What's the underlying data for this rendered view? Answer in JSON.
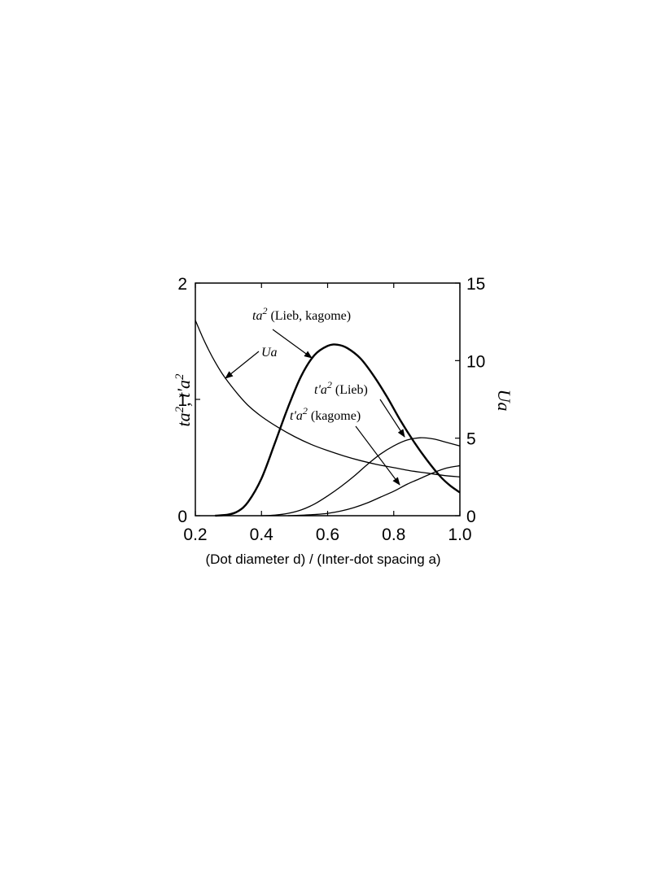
{
  "chart_data": {
    "type": "line",
    "xlabel": "(Dot diameter d) / (Inter-dot spacing a)",
    "ylabel_left": {
      "main": "ta",
      "sup1": "2",
      "sep": ", t'a",
      "sup2": "2"
    },
    "ylabel_right": "Ua",
    "xlim": [
      0.2,
      1.0
    ],
    "ylim_left": [
      0,
      2
    ],
    "ylim_right": [
      0,
      15
    ],
    "x_ticks": [
      "0.2",
      "0.4",
      "0.6",
      "0.8",
      "1.0"
    ],
    "y_left_ticks": [
      "0",
      "1",
      "2"
    ],
    "y_right_ticks": [
      "0",
      "5",
      "10",
      "15"
    ],
    "grid": false,
    "series": [
      {
        "axis": "left",
        "x": [
          0.26,
          0.3,
          0.33,
          0.36,
          0.4,
          0.44,
          0.48,
          0.52,
          0.56,
          0.6,
          0.63,
          0.66,
          0.7,
          0.74,
          0.78,
          0.82,
          0.86,
          0.9,
          0.94,
          0.97,
          1.0
        ],
        "y": [
          0.0,
          0.01,
          0.04,
          0.12,
          0.32,
          0.62,
          0.93,
          1.2,
          1.38,
          1.46,
          1.47,
          1.44,
          1.35,
          1.2,
          1.02,
          0.82,
          0.64,
          0.48,
          0.34,
          0.26,
          0.2
        ]
      },
      {
        "axis": "left",
        "x": [
          0.4,
          0.44,
          0.48,
          0.52,
          0.56,
          0.6,
          0.64,
          0.68,
          0.72,
          0.76,
          0.8,
          0.84,
          0.88,
          0.92,
          0.96,
          1.0
        ],
        "y": [
          0.0,
          0.005,
          0.02,
          0.05,
          0.1,
          0.17,
          0.25,
          0.34,
          0.44,
          0.53,
          0.6,
          0.65,
          0.67,
          0.66,
          0.63,
          0.6
        ]
      },
      {
        "axis": "left",
        "x": [
          0.48,
          0.52,
          0.56,
          0.6,
          0.64,
          0.68,
          0.72,
          0.76,
          0.8,
          0.84,
          0.88,
          0.92,
          0.96,
          1.0
        ],
        "y": [
          0.0,
          0.004,
          0.01,
          0.02,
          0.04,
          0.07,
          0.11,
          0.16,
          0.21,
          0.27,
          0.32,
          0.37,
          0.41,
          0.43
        ]
      },
      {
        "axis": "right",
        "x": [
          0.2,
          0.22,
          0.24,
          0.26,
          0.28,
          0.3,
          0.33,
          0.36,
          0.4,
          0.45,
          0.5,
          0.55,
          0.6,
          0.65,
          0.7,
          0.75,
          0.8,
          0.85,
          0.9,
          0.95,
          1.0
        ],
        "y": [
          12.6,
          11.6,
          10.7,
          9.9,
          9.2,
          8.6,
          7.8,
          7.1,
          6.4,
          5.7,
          5.1,
          4.6,
          4.2,
          3.85,
          3.55,
          3.3,
          3.1,
          2.9,
          2.75,
          2.6,
          2.5
        ]
      }
    ],
    "annotations": {
      "ta2": {
        "main": "ta",
        "sup": "2",
        "rest": " (Lieb, kagome)"
      },
      "ua": {
        "text": "Ua"
      },
      "tpa2_lieb": {
        "main": "t'a",
        "sup": "2",
        "rest": " (Lieb)"
      },
      "tpa2_kagome": {
        "main": "t'a",
        "sup": "2",
        "rest": " (kagome)"
      }
    }
  }
}
